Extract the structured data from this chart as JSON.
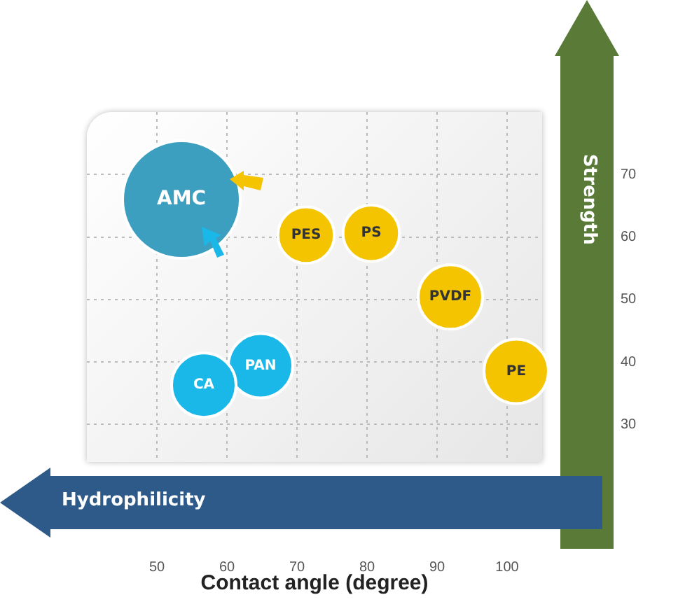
{
  "chart_data": {
    "type": "bubble",
    "xlabel": "Contact angle (degree)",
    "ylabel": "Strength",
    "annotations": [
      "Hydrophilicity"
    ],
    "xlim": [
      40,
      105
    ],
    "xticks": [
      50,
      60,
      70,
      80,
      90,
      100
    ],
    "ylim": [
      24,
      80
    ],
    "yticks": [
      30,
      40,
      50,
      60,
      70
    ],
    "grid": true,
    "legend": false,
    "series": [
      {
        "name": "AMC",
        "color": "#3d9fc0",
        "x": [
          53.5
        ],
        "values": [
          66
        ],
        "sizes": [
          1
        ]
      },
      {
        "name": "CA",
        "color": "#1ab8e8",
        "x": [
          56.7
        ],
        "values": [
          36.3
        ],
        "sizes": [
          0.3
        ]
      },
      {
        "name": "PAN",
        "color": "#1ab8e8",
        "x": [
          64.8
        ],
        "values": [
          39.4
        ],
        "sizes": [
          0.3
        ]
      },
      {
        "name": "PES",
        "color": "#f5c400",
        "x": [
          71.3
        ],
        "values": [
          60.3
        ],
        "sizes": [
          0.23
        ]
      },
      {
        "name": "PS",
        "color": "#f5c400",
        "x": [
          80.6
        ],
        "values": [
          60.6
        ],
        "sizes": [
          0.23
        ]
      },
      {
        "name": "PVDF",
        "color": "#f5c400",
        "x": [
          91.9
        ],
        "values": [
          50.4
        ],
        "sizes": [
          0.3
        ]
      },
      {
        "name": "PE",
        "color": "#f5c400",
        "x": [
          101.3
        ],
        "values": [
          38.5
        ],
        "sizes": [
          0.3
        ]
      }
    ]
  }
}
